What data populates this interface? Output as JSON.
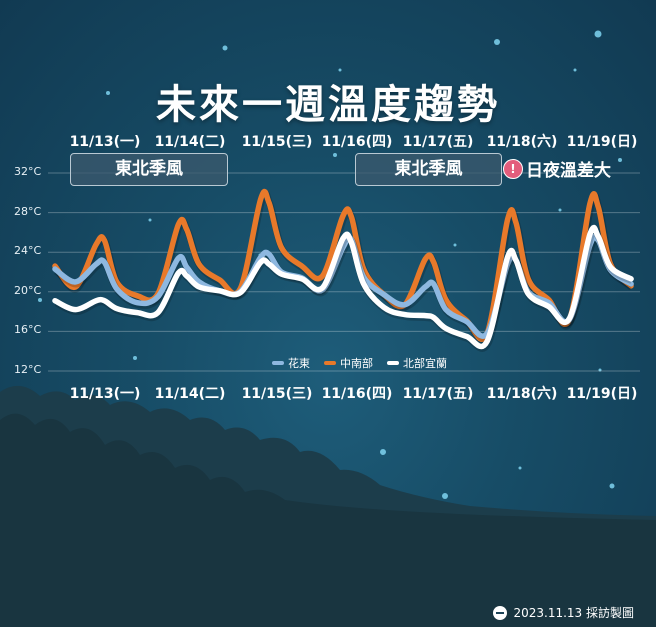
{
  "title": "未來一週溫度趨勢",
  "dates_top": [
    "11/13(一)",
    "11/14(二)",
    "11/15(三)",
    "11/16(四)",
    "11/17(五)",
    "11/18(六)",
    "11/19(日)"
  ],
  "dates_bottom": [
    "11/13(一)",
    "11/14(二)",
    "11/15(三)",
    "11/16(四)",
    "11/17(五)",
    "11/18(六)",
    "11/19(日)"
  ],
  "y_ticks": [
    "32°C",
    "28°C",
    "24°C",
    "20°C",
    "16°C",
    "12°C"
  ],
  "annotations": {
    "monsoon_1": "東北季風",
    "monsoon_2": "東北季風",
    "alert_icon": "!",
    "alert_text": "日夜溫差大"
  },
  "credit": "2023.11.13 採訪製圖",
  "colors": {
    "hualien_taitung": "#8eb8e0",
    "central_south": "#e8792a",
    "north_yilan": "#ffffff"
  },
  "chart_data": {
    "type": "line",
    "title": "未來一週溫度趨勢",
    "ylabel": "",
    "ylim": [
      12,
      32
    ],
    "yticks": [
      12,
      16,
      20,
      24,
      28,
      32
    ],
    "x_unit": "day index (0 = 11/13 00:00, tick at midday)",
    "categories": [
      "11/13(一)",
      "11/14(二)",
      "11/15(三)",
      "11/16(四)",
      "11/17(五)",
      "11/18(六)",
      "11/19(日)"
    ],
    "x": [
      0,
      0.25,
      0.5,
      0.6,
      0.75,
      1.0,
      1.25,
      1.5,
      1.6,
      1.75,
      2.0,
      2.25,
      2.5,
      2.6,
      2.75,
      3.0,
      3.25,
      3.5,
      3.6,
      3.75,
      4.0,
      4.25,
      4.5,
      4.6,
      4.75,
      5.0,
      5.25,
      5.5,
      5.6,
      5.75,
      6.0,
      6.25,
      6.5,
      6.6,
      6.75,
      7.0
    ],
    "series": [
      {
        "name": "花東",
        "color": "#8eb8e0",
        "values": [
          22.3,
          21.0,
          22.8,
          23.0,
          20.3,
          18.9,
          19.5,
          23.4,
          22.5,
          21.0,
          20.1,
          20.0,
          23.5,
          23.8,
          22.0,
          21.4,
          20.2,
          24.5,
          25.3,
          21.5,
          19.7,
          18.7,
          20.5,
          20.8,
          18.2,
          17.0,
          15.8,
          22.8,
          23.2,
          20.0,
          18.9,
          17.2,
          24.7,
          25.2,
          22.2,
          20.8
        ]
      },
      {
        "name": "中南部",
        "color": "#e8792a",
        "values": [
          22.6,
          20.5,
          24.8,
          25.2,
          21.0,
          19.6,
          19.8,
          26.8,
          26.3,
          22.8,
          21.2,
          20.3,
          29.4,
          29.0,
          24.5,
          22.6,
          21.6,
          27.7,
          27.6,
          22.3,
          19.7,
          18.7,
          23.3,
          23.0,
          19.2,
          17.1,
          15.8,
          27.3,
          27.0,
          21.3,
          19.2,
          17.2,
          28.9,
          28.6,
          22.8,
          20.6
        ]
      },
      {
        "name": "北部宜蘭",
        "color": "#ffffff",
        "values": [
          19.1,
          18.2,
          19.1,
          19.1,
          18.3,
          17.9,
          17.9,
          21.9,
          21.6,
          20.5,
          20.1,
          19.9,
          23.0,
          22.8,
          21.8,
          21.3,
          20.4,
          25.4,
          25.0,
          20.8,
          18.4,
          17.7,
          17.6,
          17.4,
          16.3,
          15.5,
          15.0,
          23.5,
          23.2,
          19.8,
          18.5,
          17.3,
          25.8,
          25.6,
          22.5,
          21.3
        ]
      }
    ],
    "legend": [
      "花東",
      "中南部",
      "北部宜蘭"
    ],
    "legend_position": "bottom-center",
    "grid": true
  }
}
